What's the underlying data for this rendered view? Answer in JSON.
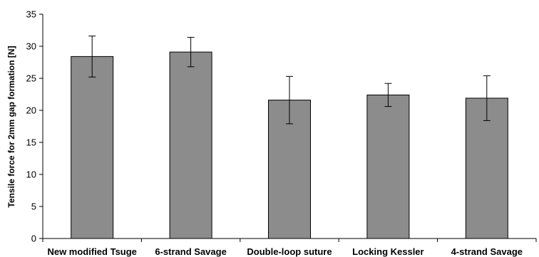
{
  "chart_data": {
    "type": "bar",
    "title": "",
    "xlabel": "",
    "ylabel": "Tensile force for 2mm gap formation [N]",
    "ylim": [
      0,
      35
    ],
    "yticks": [
      0,
      5,
      10,
      15,
      20,
      25,
      30,
      35
    ],
    "categories": [
      "New modified Tsuge",
      "6-strand Savage",
      "Double-loop suture",
      "Locking Kessler",
      "4-strand Savage"
    ],
    "values": [
      28.4,
      29.1,
      21.6,
      22.4,
      21.9
    ],
    "errors": [
      3.2,
      2.3,
      3.7,
      1.8,
      3.5
    ],
    "grid": false,
    "legend": "none",
    "bar_color": "#8c8c8c"
  }
}
